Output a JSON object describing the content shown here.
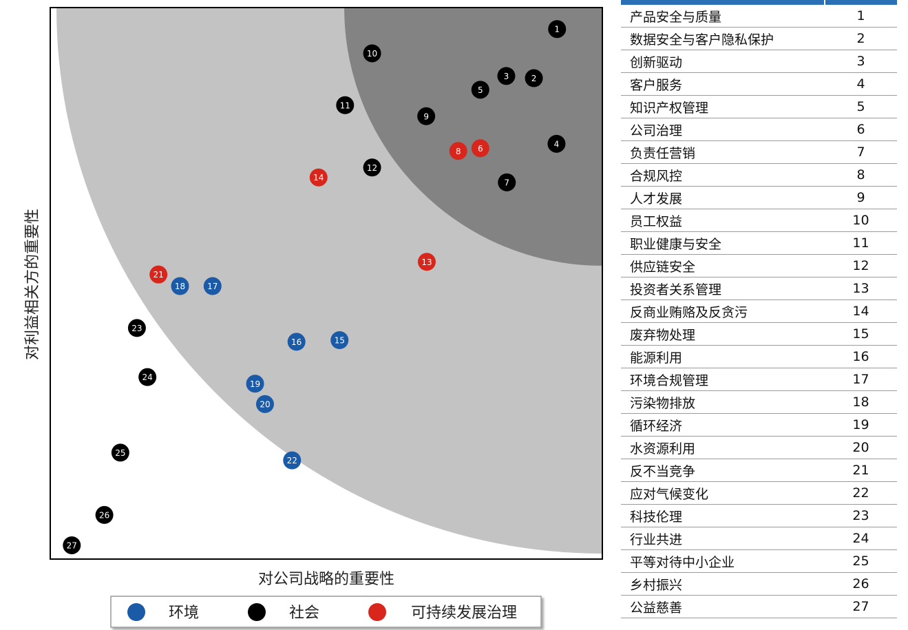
{
  "chart_data": {
    "type": "scatter",
    "xlabel": "对公司战略的重要性",
    "ylabel": "对利益相关方的重要性",
    "legend": {
      "placement": "bottom",
      "entries": [
        {
          "label": "环境",
          "color": "#1a5aa6"
        },
        {
          "label": "社会",
          "color": "#000000"
        },
        {
          "label": "可持续发展治理",
          "color": "#d9261c"
        }
      ]
    },
    "background_bands": [
      "#ffffff",
      "#c3c3c3",
      "#838383"
    ],
    "points": [
      {
        "id": 1,
        "x": 0.918,
        "y": 0.961,
        "group": "社会"
      },
      {
        "id": 2,
        "x": 0.876,
        "y": 0.872,
        "group": "社会"
      },
      {
        "id": 3,
        "x": 0.826,
        "y": 0.876,
        "group": "社会"
      },
      {
        "id": 4,
        "x": 0.917,
        "y": 0.753,
        "group": "社会"
      },
      {
        "id": 5,
        "x": 0.779,
        "y": 0.851,
        "group": "社会"
      },
      {
        "id": 6,
        "x": 0.779,
        "y": 0.745,
        "group": "可持续发展治理"
      },
      {
        "id": 7,
        "x": 0.827,
        "y": 0.683,
        "group": "社会"
      },
      {
        "id": 8,
        "x": 0.739,
        "y": 0.74,
        "group": "可持续发展治理"
      },
      {
        "id": 9,
        "x": 0.681,
        "y": 0.803,
        "group": "社会"
      },
      {
        "id": 10,
        "x": 0.583,
        "y": 0.917,
        "group": "社会"
      },
      {
        "id": 11,
        "x": 0.534,
        "y": 0.823,
        "group": "社会"
      },
      {
        "id": 12,
        "x": 0.583,
        "y": 0.71,
        "group": "社会"
      },
      {
        "id": 13,
        "x": 0.682,
        "y": 0.539,
        "group": "可持续发展治理"
      },
      {
        "id": 14,
        "x": 0.486,
        "y": 0.692,
        "group": "可持续发展治理"
      },
      {
        "id": 15,
        "x": 0.524,
        "y": 0.397,
        "group": "环境"
      },
      {
        "id": 16,
        "x": 0.446,
        "y": 0.394,
        "group": "环境"
      },
      {
        "id": 17,
        "x": 0.294,
        "y": 0.495,
        "group": "环境"
      },
      {
        "id": 18,
        "x": 0.235,
        "y": 0.495,
        "group": "环境"
      },
      {
        "id": 19,
        "x": 0.371,
        "y": 0.318,
        "group": "环境"
      },
      {
        "id": 20,
        "x": 0.389,
        "y": 0.281,
        "group": "环境"
      },
      {
        "id": 21,
        "x": 0.196,
        "y": 0.516,
        "group": "可持续发展治理"
      },
      {
        "id": 22,
        "x": 0.438,
        "y": 0.179,
        "group": "环境"
      },
      {
        "id": 23,
        "x": 0.157,
        "y": 0.419,
        "group": "社会"
      },
      {
        "id": 24,
        "x": 0.176,
        "y": 0.33,
        "group": "社会"
      },
      {
        "id": 25,
        "x": 0.127,
        "y": 0.193,
        "group": "社会"
      },
      {
        "id": 26,
        "x": 0.098,
        "y": 0.08,
        "group": "社会"
      },
      {
        "id": 27,
        "x": 0.039,
        "y": 0.025,
        "group": "社会"
      }
    ]
  },
  "table": {
    "rows": [
      {
        "name": "产品安全与质量",
        "idx": "1"
      },
      {
        "name": "数据安全与客户隐私保护",
        "idx": "2"
      },
      {
        "name": "创新驱动",
        "idx": "3"
      },
      {
        "name": "客户服务",
        "idx": "4"
      },
      {
        "name": "知识产权管理",
        "idx": "5"
      },
      {
        "name": "公司治理",
        "idx": "6"
      },
      {
        "name": "负责任营销",
        "idx": "7"
      },
      {
        "name": "合规风控",
        "idx": "8"
      },
      {
        "name": "人才发展",
        "idx": "9"
      },
      {
        "name": "员工权益",
        "idx": "10"
      },
      {
        "name": "职业健康与安全",
        "idx": "11"
      },
      {
        "name": "供应链安全",
        "idx": "12"
      },
      {
        "name": "投资者关系管理",
        "idx": "13"
      },
      {
        "name": "反商业贿赂及反贪污",
        "idx": "14"
      },
      {
        "name": "废弃物处理",
        "idx": "15"
      },
      {
        "name": "能源利用",
        "idx": "16"
      },
      {
        "name": "环境合规管理",
        "idx": "17"
      },
      {
        "name": "污染物排放",
        "idx": "18"
      },
      {
        "name": "循环经济",
        "idx": "19"
      },
      {
        "name": "水资源利用",
        "idx": "20"
      },
      {
        "name": "反不当竞争",
        "idx": "21"
      },
      {
        "name": "应对气候变化",
        "idx": "22"
      },
      {
        "name": "科技伦理",
        "idx": "23"
      },
      {
        "name": "行业共进",
        "idx": "24"
      },
      {
        "name": "平等对待中小企业",
        "idx": "25"
      },
      {
        "name": "乡村振兴",
        "idx": "26"
      },
      {
        "name": "公益慈善",
        "idx": "27"
      }
    ]
  }
}
